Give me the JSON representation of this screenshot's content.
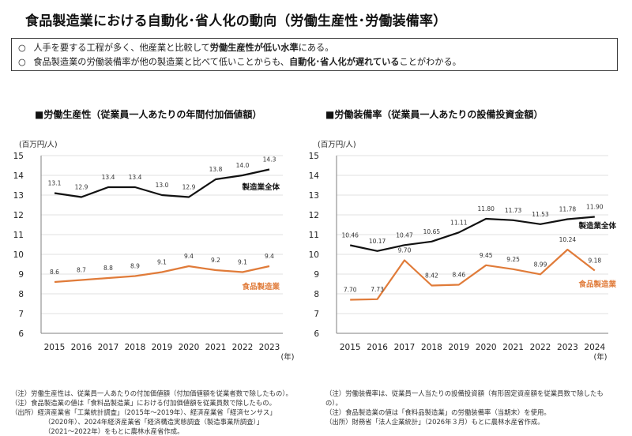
{
  "title": "食品製造業における自動化･省人化の動向（労働生産性･労働装備率）",
  "summary": [
    {
      "bullet": "○",
      "before": "人手を要する工程が多く、他産業と比較して",
      "bold": "労働生産性が低い水準",
      "after": "にある。"
    },
    {
      "bullet": "○",
      "before": "食品製造業の労働装備率が他の製造業と比べて低いことからも、",
      "bold": "自動化･省人化が遅れている",
      "after": "ことがわかる。"
    }
  ],
  "chart_data": [
    {
      "type": "line",
      "title": "■労働生産性（従業員一人あたりの年間付加価値額）",
      "ylabel": "(百万円/人)",
      "xlabel": "(年)",
      "ylim": [
        6,
        15
      ],
      "yticks": [
        "6",
        "7",
        "8",
        "9",
        "10",
        "11",
        "12",
        "13",
        "14",
        "15"
      ],
      "x": [
        "2015",
        "2016",
        "2017",
        "2018",
        "2019",
        "2020",
        "2021",
        "2022",
        "2023"
      ],
      "series": [
        {
          "name": "製造業全体",
          "color": "#111111",
          "values": [
            13.1,
            12.9,
            13.4,
            13.4,
            13.0,
            12.9,
            13.8,
            14.0,
            14.3
          ],
          "labels": [
            "13.1",
            "12.9",
            "13.4",
            "13.4",
            "13.0",
            "12.9",
            "13.8",
            "14.0",
            "14.3"
          ]
        },
        {
          "name": "食品製造業",
          "color": "#e07b39",
          "values": [
            8.6,
            8.7,
            8.8,
            8.9,
            9.1,
            9.4,
            9.2,
            9.1,
            9.4
          ],
          "labels": [
            "8.6",
            "8.7",
            "8.8",
            "8.9",
            "9.1",
            "9.4",
            "9.2",
            "9.1",
            "9.4"
          ]
        }
      ],
      "grid": true
    },
    {
      "type": "line",
      "title": "■労働装備率（従業員一人あたりの設備投資金額）",
      "ylabel": "(百万円/人)",
      "xlabel": "(年)",
      "ylim": [
        6,
        15
      ],
      "yticks": [
        "6",
        "7",
        "8",
        "9",
        "10",
        "11",
        "12",
        "13",
        "14",
        "15"
      ],
      "x": [
        "2015",
        "2016",
        "2017",
        "2018",
        "2019",
        "2020",
        "2021",
        "2022",
        "2023",
        "2024"
      ],
      "series": [
        {
          "name": "製造業全体",
          "color": "#111111",
          "values": [
            10.46,
            10.17,
            10.47,
            10.65,
            11.11,
            11.8,
            11.73,
            11.53,
            11.78,
            11.9
          ],
          "labels": [
            "10.46",
            "10.17",
            "10.47",
            "10.65",
            "11.11",
            "11.80",
            "11.73",
            "11.53",
            "11.78",
            "11.90"
          ]
        },
        {
          "name": "食品製造業",
          "color": "#e07b39",
          "values": [
            7.7,
            7.73,
            9.7,
            8.42,
            8.46,
            9.45,
            9.25,
            8.99,
            10.24,
            9.18
          ],
          "labels": [
            "7.70",
            "7.73",
            "9.70",
            "8.42",
            "8.46",
            "9.45",
            "9.25",
            "8.99",
            "10.24",
            "9.18"
          ]
        }
      ],
      "grid": true
    }
  ],
  "notes_left": [
    "（注）労働生産性は、従業員一人あたりの付加価値額（付加価値額を従業者数で除したもの）。",
    "（注）食品製造業の値は「食料品製造業」における付加価値額を従業員数で除したもの。",
    "（出所）経済産業省「工業統計調査」（2015年～2019年）、経済産業省「経済センサス」",
    "（2020年）、2024年経済産業省「経済構造実態調査（製造事業所調査）」",
    "（2021～2022年）をもとに農林水産省作成。"
  ],
  "notes_right": [
    "（注）労働装備率は、従業員一人当たりの設備投資額（有形固定資産額を従業員数で除したも",
    "の）。",
    "（注）食品製造業の値は「食料品製造業」の労働装備率（当期末）を使用。",
    "（出所）財務省「法人企業統計」（2026年３月）もとに農林水産省作成。"
  ]
}
